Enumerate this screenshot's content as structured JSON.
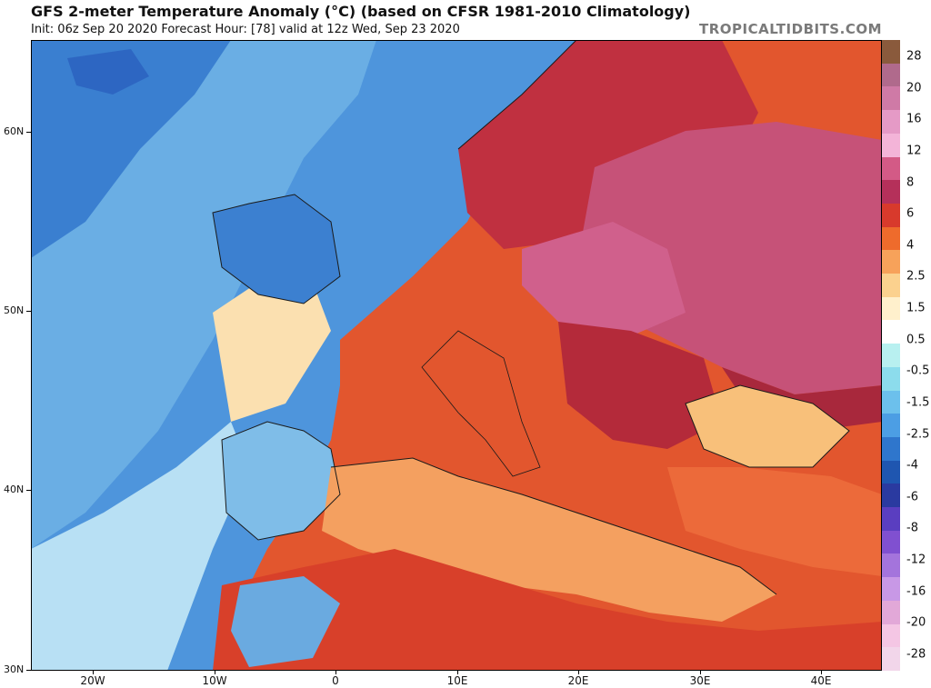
{
  "header": {
    "title": "GFS 2-meter Temperature Anomaly (°C) (based on CFSR 1981-2010 Climatology)",
    "subtitle": "Init: 06z Sep 20 2020   Forecast Hour: [78]   valid at 12z Wed, Sep 23 2020",
    "site": "TROPICALTIDBITS.COM"
  },
  "map": {
    "y_ticks": [
      "60N",
      "50N",
      "40N",
      "30N"
    ],
    "x_ticks": [
      "20W",
      "10W",
      "0",
      "10E",
      "20E",
      "30E",
      "40E"
    ]
  },
  "colorbar": {
    "labels": [
      "28",
      "20",
      "16",
      "12",
      "8",
      "6",
      "4",
      "2.5",
      "1.5",
      "0.5",
      "-0.5",
      "-1.5",
      "-2.5",
      "-4",
      "-6",
      "-8",
      "-12",
      "-16",
      "-20",
      "-28"
    ],
    "colors": [
      "#8a5a3c",
      "#b06a8c",
      "#cf7aa6",
      "#e59ac6",
      "#f3b4d8",
      "#d35a86",
      "#b5305a",
      "#d83a2c",
      "#ee6b2c",
      "#f7a25a",
      "#fbd18e",
      "#fff0cc",
      "#ffffff",
      "#b8f0f0",
      "#8cdcec",
      "#6cc0ec",
      "#4c9ee4",
      "#2f76cc",
      "#1f56b0",
      "#2a3aa0",
      "#5a3ec0",
      "#8050d0",
      "#a474dc",
      "#c898e6",
      "#e2a8d8",
      "#f4c6e4",
      "#f2d6ea"
    ]
  }
}
